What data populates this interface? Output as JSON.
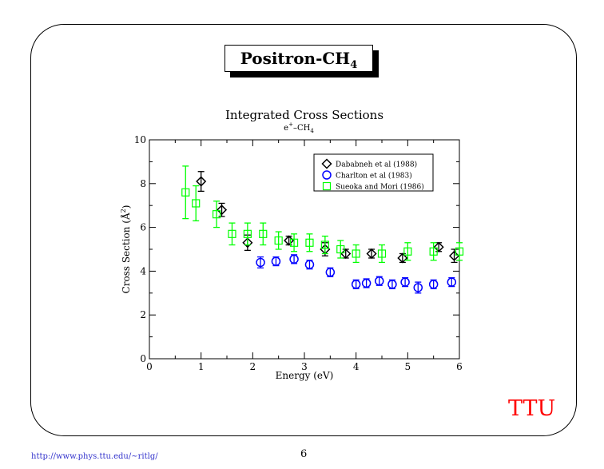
{
  "header": {
    "title_main": "Positron-CH",
    "title_sub": "4"
  },
  "footer": {
    "url": "http://www.phys.ttu.edu/~ritlg/",
    "page": "6",
    "logo": "TTU"
  },
  "chart_data": {
    "type": "scatter",
    "title": "Integrated Cross Sections",
    "subtitle": "e+–CH4",
    "xlabel": "Energy (eV)",
    "ylabel": "Cross Section (Å2)",
    "xlim": [
      0,
      6
    ],
    "ylim": [
      0,
      10
    ],
    "xticks": [
      "0",
      "1",
      "2",
      "3",
      "4",
      "5",
      "6"
    ],
    "yticks": [
      "0",
      "2",
      "4",
      "6",
      "8",
      "10"
    ],
    "legend_position": "top-right",
    "series": [
      {
        "name": "Dababneh et al (1988)",
        "marker": "diamond",
        "color": "#000000",
        "x": [
          1.0,
          1.4,
          1.9,
          2.7,
          3.4,
          3.8,
          4.3,
          4.9,
          5.6,
          5.9
        ],
        "y": [
          8.1,
          6.8,
          5.3,
          5.4,
          5.0,
          4.8,
          4.8,
          4.6,
          5.1,
          4.7
        ],
        "err": [
          0.45,
          0.3,
          0.35,
          0.2,
          0.3,
          0.2,
          0.2,
          0.2,
          0.2,
          0.3
        ]
      },
      {
        "name": "Charlton et al (1983)",
        "marker": "circle",
        "color": "#0000ff",
        "x": [
          2.15,
          2.45,
          2.8,
          3.1,
          3.5,
          4.0,
          4.2,
          4.45,
          4.7,
          4.95,
          5.2,
          5.5,
          5.85
        ],
        "y": [
          4.4,
          4.45,
          4.55,
          4.3,
          3.95,
          3.4,
          3.45,
          3.55,
          3.4,
          3.5,
          3.25,
          3.4,
          3.5
        ],
        "err": [
          0.25,
          0.2,
          0.2,
          0.2,
          0.2,
          0.2,
          0.2,
          0.2,
          0.2,
          0.2,
          0.25,
          0.2,
          0.2
        ]
      },
      {
        "name": "Sueoka and Mori (1986)",
        "marker": "square",
        "color": "#00ff00",
        "x": [
          0.7,
          0.9,
          1.3,
          1.6,
          1.9,
          2.2,
          2.5,
          2.8,
          3.1,
          3.4,
          3.7,
          4.0,
          4.5,
          5.0,
          5.5,
          6.0
        ],
        "y": [
          7.6,
          7.1,
          6.6,
          5.7,
          5.7,
          5.7,
          5.4,
          5.3,
          5.3,
          5.2,
          5.0,
          4.8,
          4.8,
          4.9,
          4.9,
          4.9
        ],
        "err": [
          1.2,
          0.8,
          0.6,
          0.5,
          0.5,
          0.5,
          0.4,
          0.4,
          0.4,
          0.4,
          0.4,
          0.4,
          0.4,
          0.4,
          0.4,
          0.4
        ]
      }
    ]
  }
}
